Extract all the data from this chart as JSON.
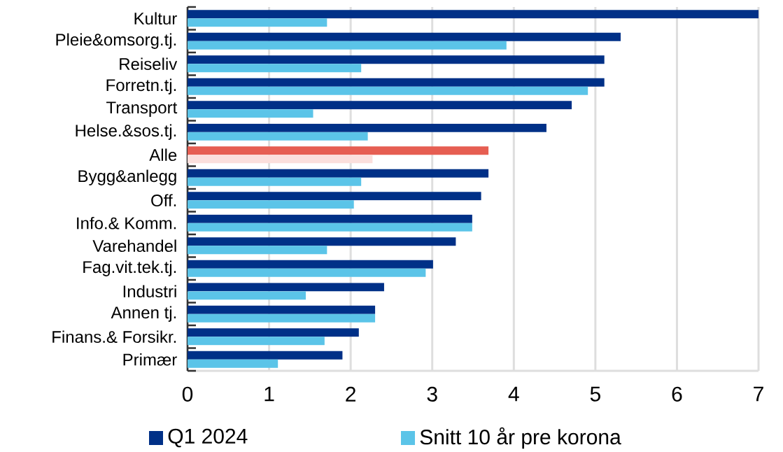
{
  "chart_data": {
    "type": "bar",
    "orientation": "horizontal",
    "categories": [
      "Kultur",
      "Pleie&omsorg.tj.",
      "Reiseliv",
      "Forretn.tj.",
      "Transport",
      "Helse.&sos.tj.",
      "Alle",
      "Bygg&anlegg",
      "Off.",
      "Info.& Komm.",
      "Varehandel",
      "Fag.vit.tek.tj.",
      "Industri",
      "Annen tj.",
      "Finans.& Forsikr.",
      "Primær"
    ],
    "series": [
      {
        "name": "Q1 2024",
        "color": "#003087",
        "colors": [
          "#003087",
          "#003087",
          "#003087",
          "#003087",
          "#003087",
          "#003087",
          "#e65e52",
          "#003087",
          "#003087",
          "#003087",
          "#003087",
          "#003087",
          "#003087",
          "#003087",
          "#003087",
          "#003087"
        ],
        "values": [
          7.0,
          5.31,
          5.11,
          5.11,
          4.71,
          4.4,
          3.69,
          3.69,
          3.6,
          3.49,
          3.29,
          3.01,
          2.41,
          2.3,
          2.1,
          1.9
        ]
      },
      {
        "name": "Snitt 10 år pre korona",
        "color": "#5bc4e8",
        "colors": [
          "#5bc4e8",
          "#5bc4e8",
          "#5bc4e8",
          "#5bc4e8",
          "#5bc4e8",
          "#5bc4e8",
          "#fbdfdc",
          "#5bc4e8",
          "#5bc4e8",
          "#5bc4e8",
          "#5bc4e8",
          "#5bc4e8",
          "#5bc4e8",
          "#5bc4e8",
          "#5bc4e8",
          "#5bc4e8"
        ],
        "values": [
          1.71,
          3.91,
          2.13,
          4.91,
          1.54,
          2.21,
          2.27,
          2.13,
          2.04,
          3.49,
          1.71,
          2.92,
          1.45,
          2.3,
          1.68,
          1.11
        ]
      }
    ],
    "xlim": [
      0,
      7
    ],
    "xticks": [
      0,
      1,
      2,
      3,
      4,
      5,
      6,
      7
    ],
    "grid": "x",
    "legend": "bottom"
  }
}
